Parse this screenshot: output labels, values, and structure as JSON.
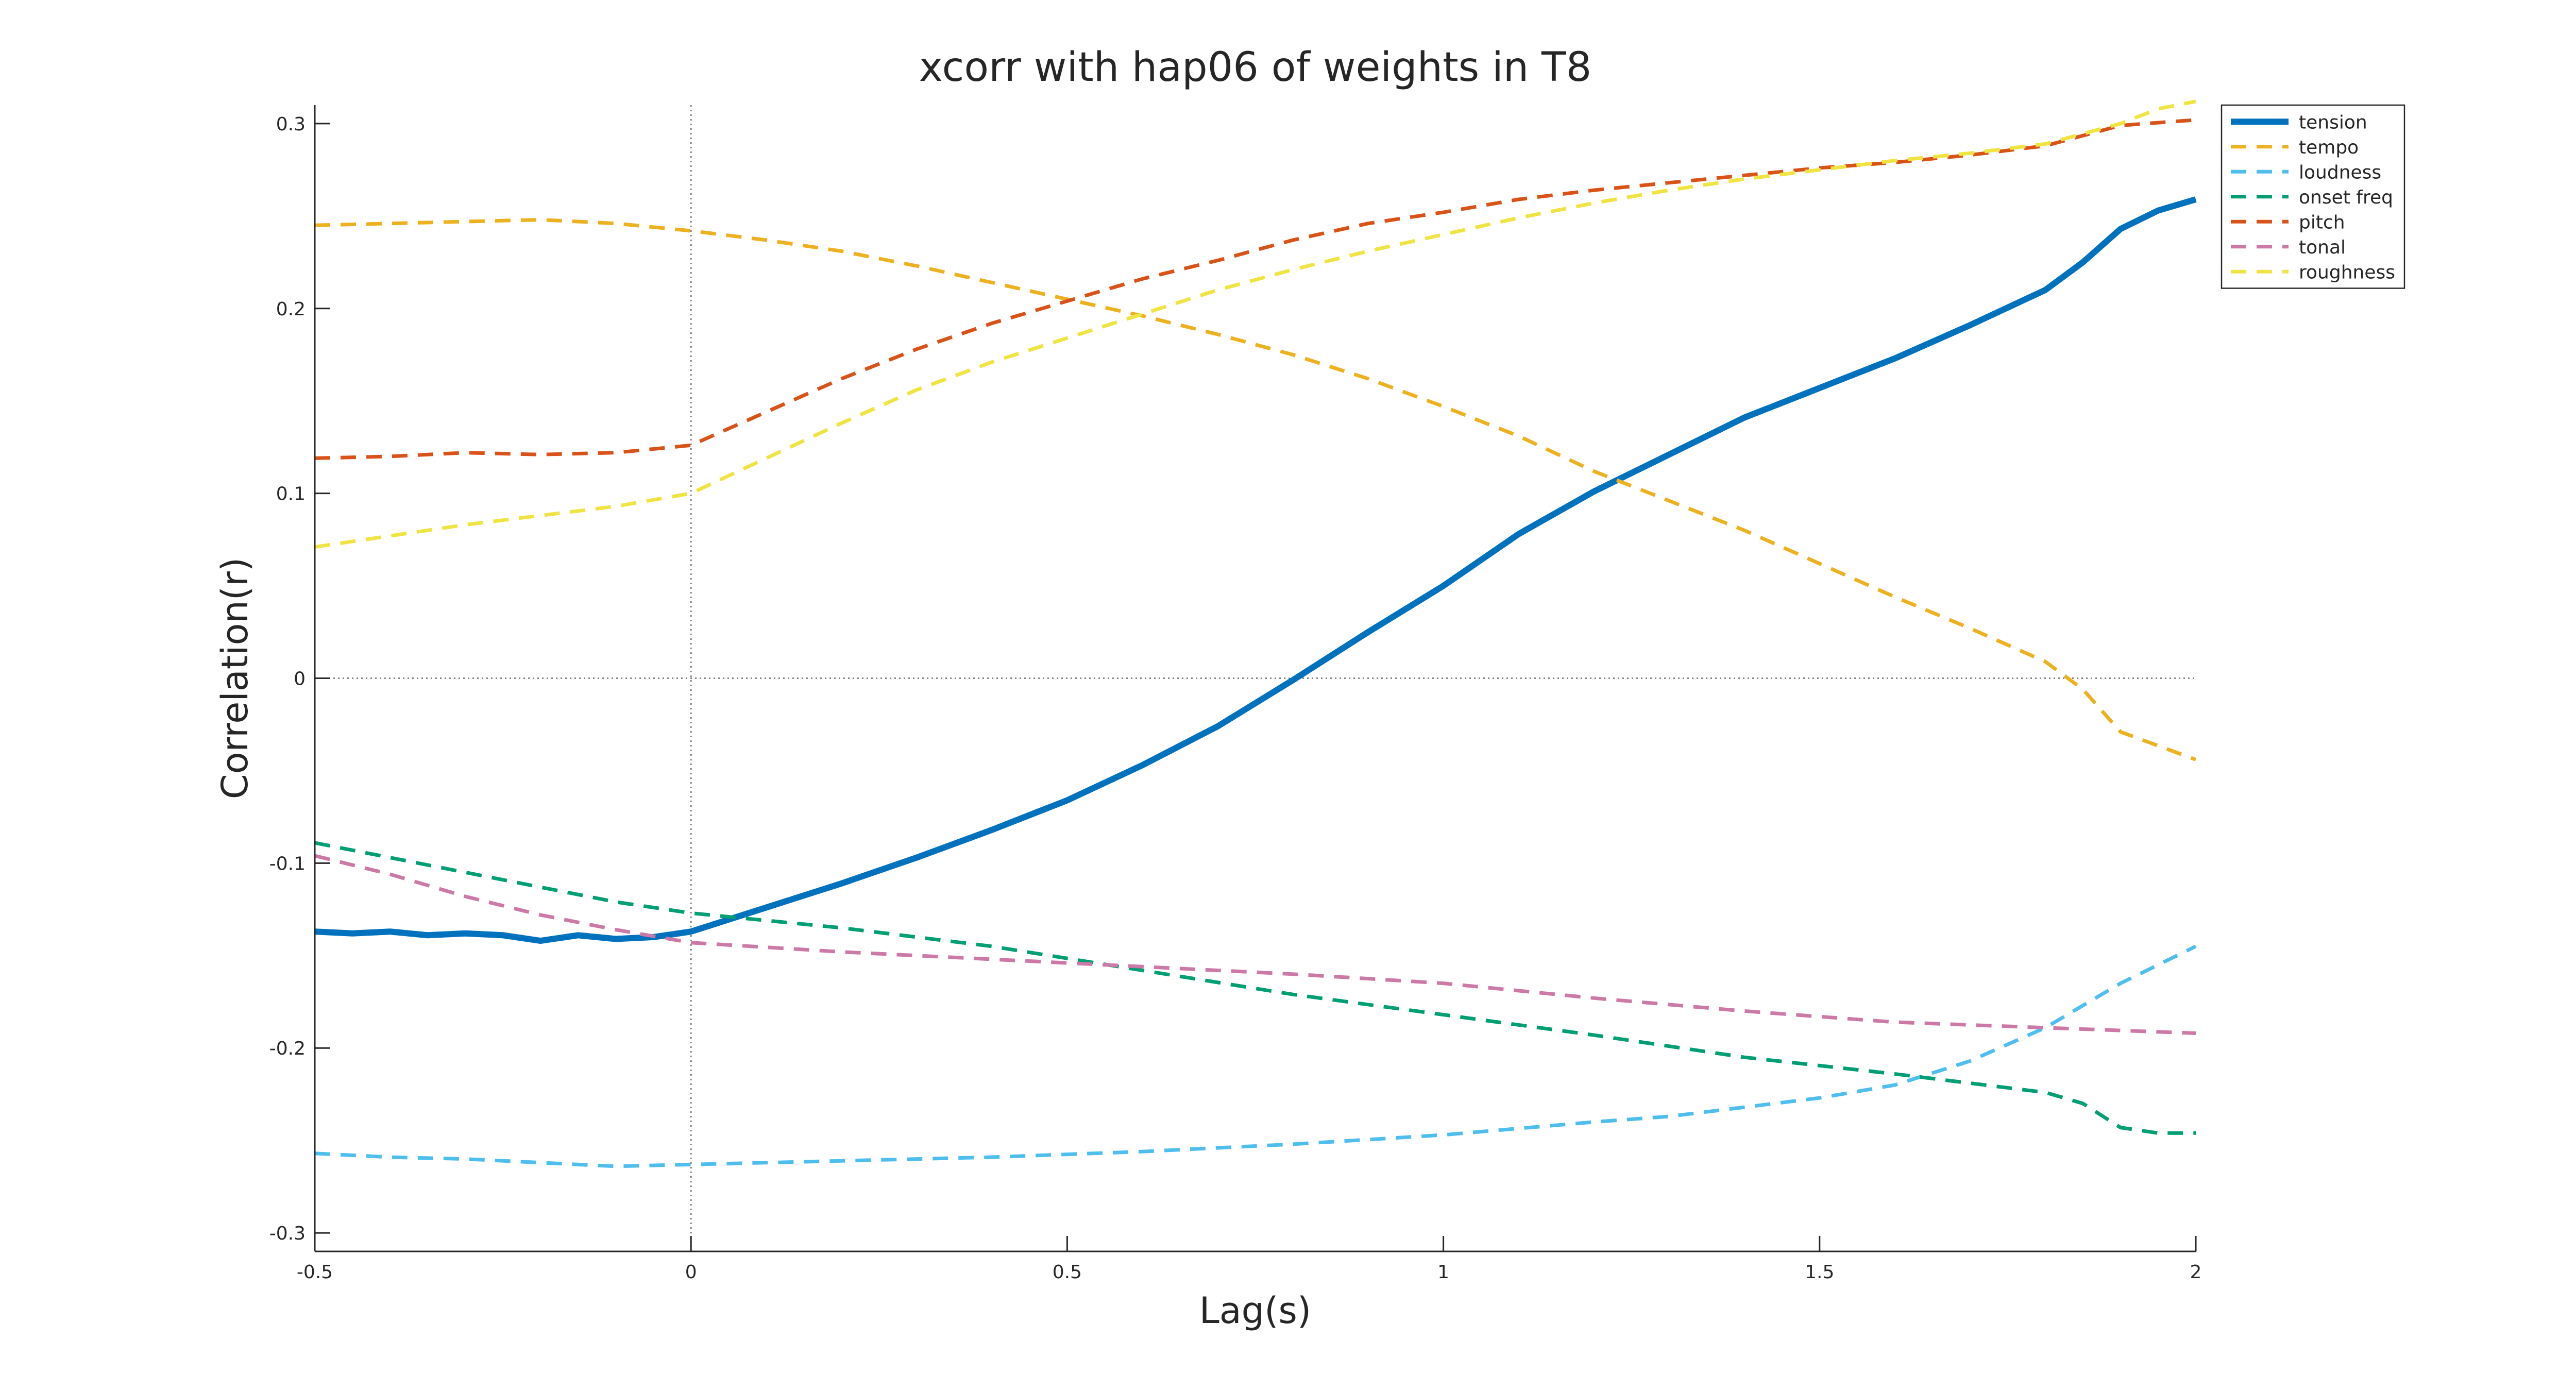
{
  "chart_data": {
    "type": "line",
    "title": "xcorr with hap06 of weights in T8",
    "xlabel": "Lag(s)",
    "ylabel": "Correlation(r)",
    "xlim": [
      -0.5,
      2
    ],
    "ylim": [
      -0.31,
      0.31
    ],
    "xticks": [
      -0.5,
      0,
      0.5,
      1,
      1.5,
      2
    ],
    "xtick_labels": [
      "-0.5",
      "0",
      "0.5",
      "1",
      "1.5",
      "2"
    ],
    "yticks": [
      -0.3,
      -0.2,
      -0.1,
      0,
      0.1,
      0.2,
      0.3
    ],
    "ytick_labels": [
      "-0.3",
      "-0.2",
      "-0.1",
      "0",
      "0.1",
      "0.2",
      "0.3"
    ],
    "grid": false,
    "reference_lines": {
      "x": 0,
      "y": 0,
      "style": "dotted",
      "color": "#808080"
    },
    "legend_position": "top-right",
    "series": [
      {
        "name": "tension",
        "color": "#0072BD",
        "style": "solid",
        "x": [
          -0.5,
          -0.45,
          -0.4,
          -0.35,
          -0.3,
          -0.25,
          -0.2,
          -0.15,
          -0.1,
          -0.05,
          0,
          0.1,
          0.2,
          0.3,
          0.4,
          0.5,
          0.6,
          0.7,
          0.8,
          0.9,
          1.0,
          1.1,
          1.2,
          1.3,
          1.4,
          1.5,
          1.6,
          1.7,
          1.8,
          1.85,
          1.9,
          1.95,
          2.0
        ],
        "y": [
          -0.137,
          -0.138,
          -0.137,
          -0.139,
          -0.138,
          -0.139,
          -0.142,
          -0.139,
          -0.141,
          -0.14,
          -0.137,
          -0.124,
          -0.111,
          -0.097,
          -0.082,
          -0.066,
          -0.047,
          -0.026,
          -0.001,
          0.025,
          0.05,
          0.078,
          0.101,
          0.121,
          0.141,
          0.157,
          0.173,
          0.191,
          0.21,
          0.225,
          0.243,
          0.253,
          0.259
        ]
      },
      {
        "name": "tempo",
        "color": "#EDB120",
        "style": "dashed",
        "x": [
          -0.5,
          -0.4,
          -0.3,
          -0.2,
          -0.1,
          0,
          0.1,
          0.2,
          0.3,
          0.4,
          0.5,
          0.6,
          0.7,
          0.8,
          0.9,
          1.0,
          1.1,
          1.2,
          1.3,
          1.4,
          1.5,
          1.6,
          1.7,
          1.8,
          1.85,
          1.9,
          2.0
        ],
        "y": [
          0.245,
          0.246,
          0.247,
          0.248,
          0.246,
          0.242,
          0.237,
          0.231,
          0.223,
          0.214,
          0.205,
          0.196,
          0.186,
          0.175,
          0.162,
          0.147,
          0.131,
          0.112,
          0.096,
          0.08,
          0.062,
          0.044,
          0.027,
          0.009,
          -0.006,
          -0.029,
          -0.044
        ]
      },
      {
        "name": "loudness",
        "color": "#4DBEEE",
        "style": "dashed",
        "x": [
          -0.5,
          -0.4,
          -0.3,
          -0.2,
          -0.1,
          0,
          0.2,
          0.4,
          0.6,
          0.8,
          1.0,
          1.2,
          1.3,
          1.4,
          1.5,
          1.6,
          1.7,
          1.8,
          1.9,
          2.0
        ],
        "y": [
          -0.257,
          -0.259,
          -0.26,
          -0.262,
          -0.264,
          -0.263,
          -0.261,
          -0.259,
          -0.256,
          -0.252,
          -0.247,
          -0.24,
          -0.237,
          -0.232,
          -0.227,
          -0.22,
          -0.207,
          -0.189,
          -0.165,
          -0.145
        ]
      },
      {
        "name": "onset freq",
        "color": "#009E73",
        "style": "dashed",
        "x": [
          -0.5,
          -0.4,
          -0.3,
          -0.2,
          -0.1,
          0,
          0.2,
          0.4,
          0.6,
          0.8,
          1.0,
          1.2,
          1.4,
          1.6,
          1.8,
          1.85,
          1.9,
          1.95,
          2.0
        ],
        "y": [
          -0.089,
          -0.097,
          -0.105,
          -0.113,
          -0.121,
          -0.127,
          -0.135,
          -0.145,
          -0.158,
          -0.171,
          -0.182,
          -0.193,
          -0.205,
          -0.214,
          -0.224,
          -0.23,
          -0.243,
          -0.246,
          -0.246
        ]
      },
      {
        "name": "pitch",
        "color": "#D95319",
        "style": "dashed",
        "x": [
          -0.5,
          -0.4,
          -0.3,
          -0.2,
          -0.1,
          0,
          0.1,
          0.2,
          0.3,
          0.4,
          0.5,
          0.6,
          0.7,
          0.8,
          0.9,
          1.0,
          1.1,
          1.2,
          1.3,
          1.4,
          1.5,
          1.6,
          1.7,
          1.8,
          1.9,
          2.0
        ],
        "y": [
          0.119,
          0.12,
          0.122,
          0.121,
          0.122,
          0.126,
          0.144,
          0.162,
          0.178,
          0.192,
          0.204,
          0.216,
          0.226,
          0.237,
          0.246,
          0.252,
          0.259,
          0.264,
          0.268,
          0.272,
          0.276,
          0.279,
          0.283,
          0.288,
          0.299,
          0.302
        ]
      },
      {
        "name": "tonal",
        "color": "#CC79A7",
        "style": "dashed",
        "x": [
          -0.5,
          -0.4,
          -0.3,
          -0.2,
          -0.1,
          0,
          0.2,
          0.4,
          0.6,
          0.8,
          1.0,
          1.2,
          1.4,
          1.6,
          1.8,
          2.0
        ],
        "y": [
          -0.096,
          -0.106,
          -0.118,
          -0.128,
          -0.136,
          -0.143,
          -0.148,
          -0.152,
          -0.156,
          -0.16,
          -0.165,
          -0.173,
          -0.18,
          -0.186,
          -0.189,
          -0.192
        ]
      },
      {
        "name": "roughness",
        "color": "#F0E442",
        "style": "dashed",
        "x": [
          -0.5,
          -0.4,
          -0.3,
          -0.2,
          -0.1,
          0,
          0.1,
          0.2,
          0.3,
          0.4,
          0.5,
          0.6,
          0.7,
          0.8,
          0.9,
          1.0,
          1.1,
          1.2,
          1.3,
          1.4,
          1.5,
          1.6,
          1.7,
          1.8,
          1.9,
          1.95,
          2.0
        ],
        "y": [
          0.071,
          0.077,
          0.083,
          0.088,
          0.093,
          0.1,
          0.119,
          0.138,
          0.156,
          0.171,
          0.184,
          0.197,
          0.21,
          0.221,
          0.231,
          0.24,
          0.249,
          0.257,
          0.264,
          0.27,
          0.275,
          0.28,
          0.284,
          0.289,
          0.3,
          0.308,
          0.312
        ]
      }
    ]
  }
}
